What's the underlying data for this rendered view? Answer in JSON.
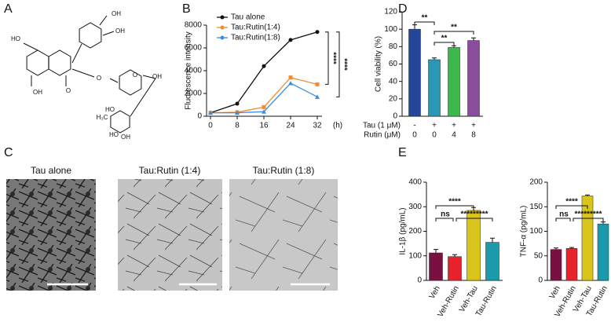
{
  "panel_letters": [
    "A",
    "B",
    "C",
    "D",
    "E"
  ],
  "structure_labels": [
    "HO",
    "OH",
    "OH",
    "OH",
    "O",
    "O",
    "O",
    "OH",
    "HO",
    "HO",
    "OH",
    "H₃C"
  ],
  "micrograph_titles": [
    "Tau alone",
    "Tau:Rutin (1:4)",
    "Tau:Rutin (1:8)"
  ],
  "chart_data": [
    {
      "type": "line",
      "ylabel": "Fluorescence intensity",
      "xlabel": "(h)",
      "x": [
        0,
        8,
        16,
        24,
        32
      ],
      "xlim": [
        0,
        32
      ],
      "xticks": [
        0,
        8,
        16,
        24,
        32
      ],
      "ylim": [
        0,
        8000
      ],
      "yticks": [
        0,
        2000,
        4000,
        6000,
        8000
      ],
      "series": [
        {
          "name": "Tau alone",
          "color": "#111111",
          "values": [
            300,
            1100,
            4400,
            6700,
            7400
          ]
        },
        {
          "name": "Tau:Rutin(1:4)",
          "color": "#f28a2e",
          "values": [
            300,
            350,
            800,
            3400,
            2800
          ]
        },
        {
          "name": "Tau:Rutin(1:8)",
          "color": "#3c8de0",
          "values": [
            300,
            300,
            400,
            2900,
            1700
          ]
        }
      ],
      "annotations": [
        "****",
        "****"
      ]
    },
    {
      "type": "bar",
      "ylabel": "Cell viability (%)",
      "ylim": [
        0,
        120
      ],
      "yticks": [
        0,
        20,
        40,
        60,
        80,
        100,
        120
      ],
      "values": [
        100,
        65,
        79,
        87
      ],
      "errors": [
        5,
        2,
        2,
        3
      ],
      "colors": [
        "#25479a",
        "#2b98b3",
        "#3db84b",
        "#8a4d9e"
      ],
      "condition_rows": [
        {
          "label": "Tau (1 μM)",
          "values": [
            "-",
            "+",
            "+",
            "+"
          ]
        },
        {
          "label": "Rutin (μM)",
          "values": [
            "0",
            "0",
            "4",
            "8"
          ]
        }
      ],
      "annotations": [
        "**",
        "**",
        "**"
      ]
    },
    {
      "type": "bar",
      "ylabel": "IL-1β (pg/mL)",
      "ylim": [
        0,
        400
      ],
      "yticks": [
        0,
        100,
        200,
        300,
        400
      ],
      "categories": [
        "Veh",
        "Veh-Rutin",
        "Veh-Tau",
        "Tau-Rutin"
      ],
      "values": [
        112,
        97,
        285,
        155
      ],
      "errors": [
        14,
        8,
        12,
        17
      ],
      "colors": [
        "#7a1042",
        "#e8222a",
        "#d9c51c",
        "#1b9aab"
      ],
      "annotations": [
        "****",
        "ns",
        "*********"
      ]
    },
    {
      "type": "bar",
      "ylabel": "TNF-α (pg/mL)",
      "ylim": [
        0,
        200
      ],
      "yticks": [
        0,
        50,
        100,
        150,
        200
      ],
      "categories": [
        "Veh",
        "Veh-Rutin",
        "Veh-Tau",
        "Tau-Rutin"
      ],
      "values": [
        63,
        65,
        172,
        115
      ],
      "errors": [
        3,
        2,
        2,
        4
      ],
      "colors": [
        "#7a1042",
        "#e8222a",
        "#d9c51c",
        "#1b9aab"
      ],
      "annotations": [
        "****",
        "ns",
        "*********"
      ]
    }
  ]
}
